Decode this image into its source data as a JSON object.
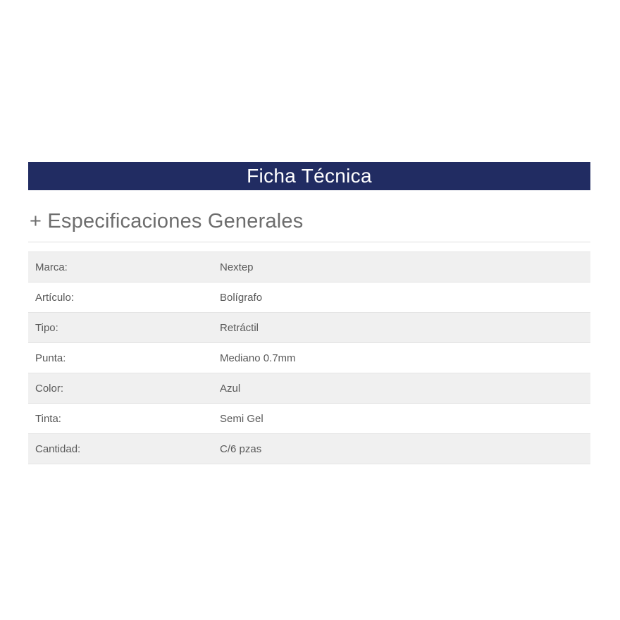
{
  "theme": {
    "header_bg": "#212c62",
    "header_text": "#ffffff",
    "heading_text": "#6d6d6d",
    "heading_underline": "#dddddd",
    "row_stripe": "#f0f0f0",
    "row_border": "#e4e4e4",
    "table_text": "#595959"
  },
  "header": {
    "title": "Ficha Técnica"
  },
  "section": {
    "heading": "+ Especificaciones Generales"
  },
  "spec_table": {
    "rows": [
      {
        "label": "Marca:",
        "value": "Nextep"
      },
      {
        "label": "Artículo:",
        "value": "Bolígrafo"
      },
      {
        "label": "Tipo:",
        "value": "Retráctil"
      },
      {
        "label": "Punta:",
        "value": "Mediano 0.7mm"
      },
      {
        "label": "Color:",
        "value": "Azul"
      },
      {
        "label": "Tinta:",
        "value": "Semi Gel"
      },
      {
        "label": "Cantidad:",
        "value": "C/6 pzas"
      }
    ]
  }
}
